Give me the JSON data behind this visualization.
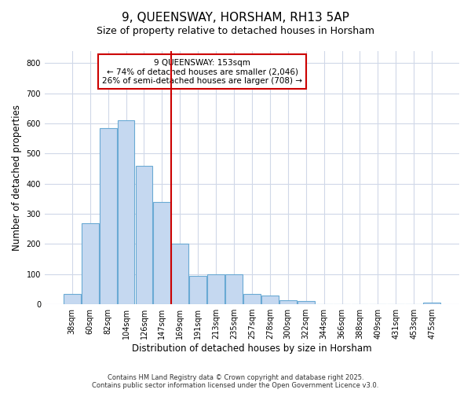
{
  "title": "9, QUEENSWAY, HORSHAM, RH13 5AP",
  "subtitle": "Size of property relative to detached houses in Horsham",
  "xlabel": "Distribution of detached houses by size in Horsham",
  "ylabel": "Number of detached properties",
  "bar_labels": [
    "38sqm",
    "60sqm",
    "82sqm",
    "104sqm",
    "126sqm",
    "147sqm",
    "169sqm",
    "191sqm",
    "213sqm",
    "235sqm",
    "257sqm",
    "278sqm",
    "300sqm",
    "322sqm",
    "344sqm",
    "366sqm",
    "388sqm",
    "409sqm",
    "431sqm",
    "453sqm",
    "475sqm"
  ],
  "bar_values": [
    35,
    268,
    585,
    610,
    460,
    340,
    200,
    93,
    100,
    100,
    35,
    30,
    14,
    10,
    0,
    0,
    0,
    0,
    0,
    0,
    5
  ],
  "bar_color": "#c5d8f0",
  "bar_edge_color": "#6aaad4",
  "vline_x": 5.5,
  "vline_color": "#cc0000",
  "annotation_text_line1": "9 QUEENSWAY: 153sqm",
  "annotation_text_line2": "← 74% of detached houses are smaller (2,046)",
  "annotation_text_line3": "26% of semi-detached houses are larger (708) →",
  "annotation_box_color": "#cc0000",
  "ylim": [
    0,
    840
  ],
  "yticks": [
    0,
    100,
    200,
    300,
    400,
    500,
    600,
    700,
    800
  ],
  "footer1": "Contains HM Land Registry data © Crown copyright and database right 2025.",
  "footer2": "Contains public sector information licensed under the Open Government Licence v3.0.",
  "bg_color": "#ffffff",
  "plot_bg_color": "#ffffff",
  "grid_color": "#d0d8e8",
  "title_fontsize": 11,
  "subtitle_fontsize": 9
}
